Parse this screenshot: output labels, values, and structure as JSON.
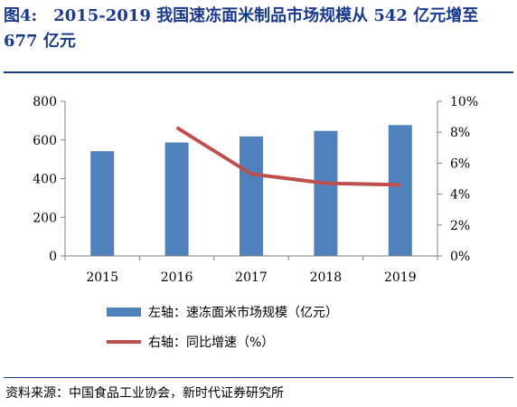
{
  "figure": {
    "label": "图4:",
    "title": "2015-2019 我国速冻面米制品市场规模从 542 亿元增至 677 亿元"
  },
  "source": "资料来源：中国食品工业协会，新时代证券研究所",
  "chart_data": {
    "type": "bar",
    "categories": [
      "2015",
      "2016",
      "2017",
      "2018",
      "2019"
    ],
    "series": [
      {
        "name": "左轴：速冻面米市场规模（亿元）",
        "type": "bar",
        "axis": "left",
        "values": [
          542,
          587,
          618,
          647,
          677
        ],
        "color": "#4f81bd"
      },
      {
        "name": "右轴：同比增速（%）",
        "type": "line",
        "axis": "right",
        "values": [
          null,
          8.3,
          5.3,
          4.7,
          4.6
        ],
        "color": "#c0504d"
      }
    ],
    "y_left": {
      "min": 0,
      "max": 800,
      "ticks": [
        "0",
        "200",
        "400",
        "600",
        "800"
      ]
    },
    "y_right": {
      "min": 0,
      "max": 10,
      "ticks": [
        "0%",
        "2%",
        "4%",
        "6%",
        "8%",
        "10%"
      ]
    },
    "legend_position": "bottom",
    "grid": false
  }
}
